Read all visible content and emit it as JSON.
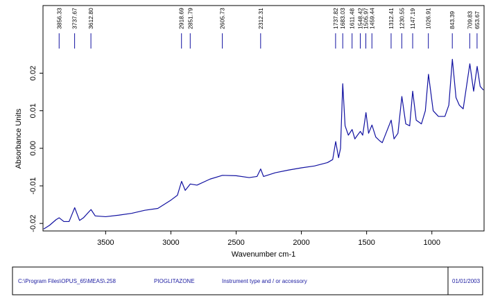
{
  "chart_data": {
    "type": "line",
    "xlabel": "Wavenumber cm-1",
    "ylabel": "Absorbance Units",
    "xlim": [
      3980,
      600
    ],
    "ylim": [
      -0.022,
      0.038
    ],
    "xticks": [
      3500,
      3000,
      2500,
      2000,
      1500,
      1000
    ],
    "yticks": [
      -0.02,
      -0.01,
      {
        "value": 0,
        "label": "0.00"
      },
      0.01,
      0.02
    ],
    "color": "#1010a0",
    "x": [
      3975,
      3930,
      3880,
      3856,
      3820,
      3780,
      3737,
      3700,
      3670,
      3612,
      3580,
      3500,
      3400,
      3300,
      3200,
      3100,
      3000,
      2950,
      2918,
      2890,
      2851,
      2800,
      2700,
      2605,
      2500,
      2400,
      2340,
      2312,
      2290,
      2200,
      2100,
      2000,
      1900,
      1800,
      1760,
      1737,
      1715,
      1700,
      1683,
      1665,
      1640,
      1611,
      1590,
      1570,
      1548,
      1530,
      1505,
      1485,
      1459,
      1430,
      1400,
      1380,
      1312,
      1290,
      1260,
      1230,
      1200,
      1170,
      1147,
      1120,
      1080,
      1050,
      1026,
      990,
      950,
      900,
      870,
      843,
      815,
      790,
      760,
      709,
      680,
      653,
      630,
      605
    ],
    "values": [
      -0.0215,
      -0.0205,
      -0.019,
      -0.0185,
      -0.0195,
      -0.0195,
      -0.0158,
      -0.0192,
      -0.0185,
      -0.0163,
      -0.018,
      -0.0182,
      -0.0178,
      -0.0173,
      -0.0165,
      -0.016,
      -0.0138,
      -0.0125,
      -0.0088,
      -0.0112,
      -0.0095,
      -0.0098,
      -0.0082,
      -0.0072,
      -0.0073,
      -0.0078,
      -0.0075,
      -0.0055,
      -0.0075,
      -0.0065,
      -0.0058,
      -0.0052,
      -0.0047,
      -0.0038,
      -0.003,
      0.0018,
      -0.0025,
      0.0,
      0.0172,
      0.006,
      0.0035,
      0.005,
      0.0025,
      0.0035,
      0.0045,
      0.0035,
      0.0095,
      0.004,
      0.0062,
      0.003,
      0.002,
      0.0015,
      0.0075,
      0.0025,
      0.004,
      0.0138,
      0.0065,
      0.006,
      0.0152,
      0.0075,
      0.0065,
      0.01,
      0.0197,
      0.01,
      0.0085,
      0.0085,
      0.0115,
      0.0237,
      0.0135,
      0.0115,
      0.0105,
      0.0225,
      0.0152,
      0.0218,
      0.0165,
      0.0155
    ],
    "peaks": [
      {
        "value": 3856.33,
        "label": "3856.33"
      },
      {
        "value": 3737.67,
        "label": "3737.67"
      },
      {
        "value": 3612.8,
        "label": "3612.80"
      },
      {
        "value": 2918.69,
        "label": "2918.69"
      },
      {
        "value": 2851.79,
        "label": "2851.79"
      },
      {
        "value": 2605.73,
        "label": "2605.73"
      },
      {
        "value": 2312.31,
        "label": "2312.31"
      },
      {
        "value": 1737.82,
        "label": "1737.82"
      },
      {
        "value": 1683.03,
        "label": "1683.03"
      },
      {
        "value": 1611.48,
        "label": "1611.48"
      },
      {
        "value": 1548.42,
        "label": "1548.42"
      },
      {
        "value": 1505.97,
        "label": "1505.97"
      },
      {
        "value": 1459.44,
        "label": "1459.44"
      },
      {
        "value": 1312.41,
        "label": "1312.41"
      },
      {
        "value": 1230.55,
        "label": "1230.55"
      },
      {
        "value": 1147.19,
        "label": "1147.19"
      },
      {
        "value": 1026.91,
        "label": "1026.91"
      },
      {
        "value": 843.39,
        "label": "843.39"
      },
      {
        "value": 709.83,
        "label": "709.83"
      },
      {
        "value": 653.67,
        "label": "653.67"
      }
    ],
    "footer": {
      "file": "C:\\Program Files\\OPUS_65\\MEAS\\.258",
      "sample": "PIOGLITAZONE",
      "instrument": "Instrument type and / or accessory",
      "date": "01/01/2003"
    }
  }
}
